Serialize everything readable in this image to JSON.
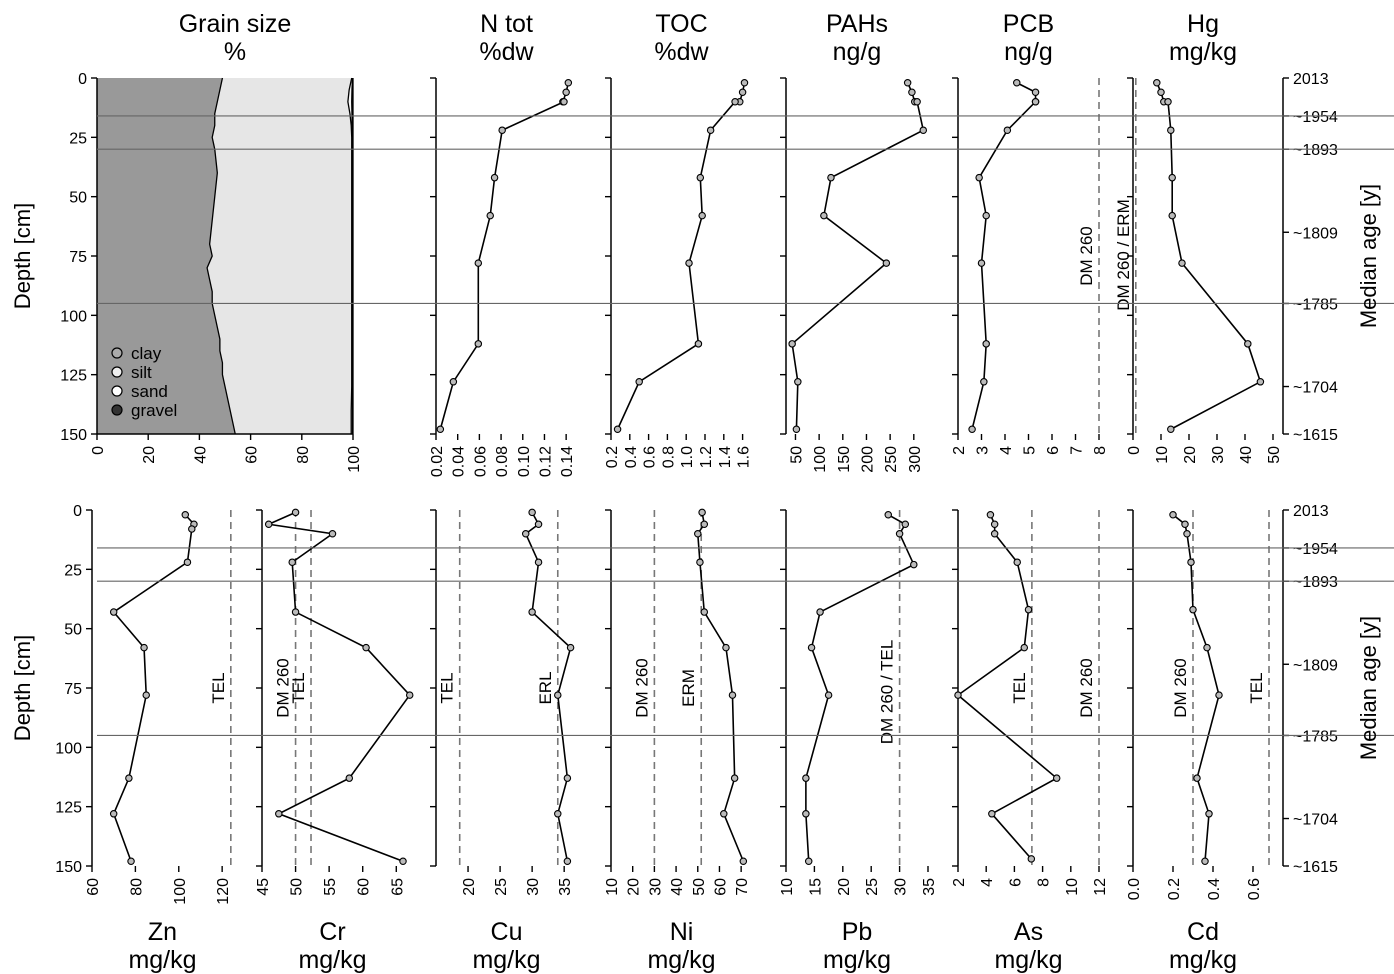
{
  "figure": {
    "ylabel": "Depth [cm]",
    "y2label": "Median age [y]"
  },
  "chart_data": [
    {
      "type": "area",
      "row": "top",
      "title_lines": [
        "Grain size",
        "%"
      ],
      "xlim": [
        0,
        100
      ],
      "xticks": [
        0,
        20,
        40,
        60,
        80,
        100
      ],
      "legend": [
        "clay",
        "silt",
        "sand",
        "gravel"
      ],
      "depth": [
        0,
        5,
        10,
        15,
        20,
        25,
        30,
        40,
        50,
        60,
        70,
        75,
        80,
        85,
        90,
        95,
        100,
        105,
        110,
        115,
        120,
        125,
        130,
        140,
        150
      ],
      "series": [
        {
          "name": "clay",
          "cumulative": [
            49,
            48,
            47,
            46,
            46,
            45,
            46,
            47,
            46,
            45,
            44,
            45,
            43,
            44,
            45,
            45,
            46,
            47,
            48,
            48,
            49,
            49,
            50,
            52,
            54
          ]
        },
        {
          "name": "silt",
          "cumulative": [
            99.5,
            98.5,
            98,
            98.8,
            99.3,
            99.5,
            99.5,
            99.5,
            99.5,
            99.5,
            99.5,
            99.5,
            99.5,
            99.5,
            99.5,
            99.5,
            99.5,
            99.5,
            99.5,
            99.5,
            99.5,
            99.5,
            99.5,
            99.3,
            99.3
          ]
        },
        {
          "name": "sand",
          "cumulative": [
            99.8,
            99.6,
            99.5,
            99.6,
            99.7,
            99.8,
            99.8,
            99.8,
            99.8,
            99.8,
            99.8,
            99.8,
            99.8,
            99.8,
            99.8,
            99.8,
            99.8,
            99.8,
            99.8,
            99.8,
            99.8,
            99.8,
            99.8,
            99.8,
            99.8
          ]
        },
        {
          "name": "gravel",
          "cumulative": [
            100,
            100,
            100,
            100,
            100,
            100,
            100,
            100,
            100,
            100,
            100,
            100,
            100,
            100,
            100,
            100,
            100,
            100,
            100,
            100,
            100,
            100,
            100,
            100,
            100
          ]
        }
      ]
    },
    {
      "type": "line",
      "row": "top",
      "title_lines": [
        "N tot",
        "%dw"
      ],
      "xlim": [
        0.02,
        0.15
      ],
      "xticks": [
        0.02,
        0.04,
        0.06,
        0.08,
        0.1,
        0.12,
        0.14
      ],
      "xtick_labels": [
        "0.02",
        "0.04",
        "0.06",
        "0.08",
        "0.10",
        "0.12",
        "0.14"
      ],
      "x": [
        0.142,
        0.14,
        0.137,
        0.138,
        0.081,
        0.074,
        0.07,
        0.059,
        0.059,
        0.036,
        0.024
      ],
      "y": [
        2,
        6,
        10,
        10,
        22,
        42,
        58,
        78,
        112,
        128,
        148
      ],
      "refs": []
    },
    {
      "type": "line",
      "row": "top",
      "title_lines": [
        "TOC",
        "%dw"
      ],
      "xlim": [
        0.2,
        1.7
      ],
      "xticks": [
        0.2,
        0.4,
        0.6,
        0.8,
        1.0,
        1.2,
        1.4,
        1.6
      ],
      "xtick_labels": [
        "0.2",
        "0.4",
        "0.6",
        "0.8",
        "1.0",
        "1.2",
        "1.4",
        "1.6"
      ],
      "x": [
        1.62,
        1.6,
        1.57,
        1.52,
        1.26,
        1.15,
        1.17,
        1.03,
        1.13,
        0.5,
        0.27
      ],
      "y": [
        2,
        6,
        10,
        10,
        22,
        42,
        58,
        78,
        112,
        128,
        148
      ],
      "refs": []
    },
    {
      "type": "line",
      "row": "top",
      "title_lines": [
        "PAHs",
        "ng/g"
      ],
      "xlim": [
        30,
        330
      ],
      "xticks": [
        50,
        100,
        150,
        200,
        250,
        300
      ],
      "xtick_labels": [
        "50",
        "100",
        "150",
        "200",
        "250",
        "300"
      ],
      "x": [
        287,
        296,
        302,
        307,
        320,
        125,
        110,
        242,
        43,
        55,
        52
      ],
      "y": [
        2,
        6,
        10,
        10,
        22,
        42,
        58,
        78,
        112,
        128,
        148
      ],
      "refs": []
    },
    {
      "type": "line",
      "row": "top",
      "title_lines": [
        "PCB",
        "ng/g"
      ],
      "xlim": [
        2,
        8
      ],
      "xticks": [
        2,
        3,
        4,
        5,
        6,
        7,
        8
      ],
      "xtick_labels": [
        "2",
        "3",
        "4",
        "5",
        "6",
        "7",
        "8"
      ],
      "x": [
        4.5,
        5.3,
        5.3,
        5.3,
        4.1,
        2.9,
        3.2,
        3.0,
        3.2,
        3.1,
        2.6
      ],
      "y": [
        2,
        6,
        10,
        10,
        22,
        42,
        58,
        78,
        112,
        128,
        148
      ],
      "refs": [
        {
          "value": 8,
          "label": "DM 260"
        }
      ]
    },
    {
      "type": "line",
      "row": "top",
      "title_lines": [
        "Hg",
        "mg/kg"
      ],
      "xlim": [
        0,
        50
      ],
      "xticks": [
        0,
        10,
        20,
        30,
        40,
        50
      ],
      "xtick_labels": [
        "0",
        "10",
        "20",
        "30",
        "40",
        "50"
      ],
      "x": [
        8.5,
        10,
        11,
        12.5,
        13.5,
        14,
        14,
        17.5,
        41,
        45.5,
        13.5
      ],
      "y": [
        2,
        6,
        10,
        10,
        22,
        42,
        58,
        78,
        112,
        128,
        148
      ],
      "refs": [
        {
          "value": 1,
          "label": "DM 260 / ERM"
        }
      ]
    },
    {
      "type": "line",
      "row": "bottom",
      "title_lines": [
        "Zn",
        "mg/kg"
      ],
      "xlim": [
        60,
        125
      ],
      "xticks": [
        60,
        80,
        100,
        120
      ],
      "xtick_labels": [
        "60",
        "80",
        "100",
        "120"
      ],
      "x": [
        103,
        107,
        106,
        104,
        70,
        84,
        85,
        77,
        70,
        78
      ],
      "y": [
        2,
        6,
        8,
        22,
        43,
        58,
        78,
        113,
        128,
        148
      ],
      "refs": [
        {
          "value": 124,
          "label": "TEL"
        }
      ]
    },
    {
      "type": "line",
      "row": "bottom",
      "title_lines": [
        "Cr",
        "mg/kg"
      ],
      "xlim": [
        45,
        66
      ],
      "xticks": [
        45,
        50,
        55,
        60,
        65
      ],
      "xtick_labels": [
        "45",
        "50",
        "55",
        "60",
        "65"
      ],
      "x": [
        50,
        46,
        55.5,
        49.5,
        50,
        60.5,
        67,
        58,
        47.5,
        66
      ],
      "y": [
        1,
        6,
        10,
        22,
        43,
        58,
        78,
        113,
        128,
        148
      ],
      "refs": [
        {
          "value": 50,
          "label": "DM 260"
        },
        {
          "value": 52.3,
          "label": "TEL"
        }
      ]
    },
    {
      "type": "line",
      "row": "bottom",
      "title_lines": [
        "Cu",
        "mg/kg"
      ],
      "xlim": [
        15,
        37
      ],
      "xticks": [
        20,
        25,
        30,
        35
      ],
      "xtick_labels": [
        "20",
        "25",
        "30",
        "35"
      ],
      "x": [
        30,
        31,
        29,
        31,
        30,
        36,
        34,
        35.5,
        34,
        35.5
      ],
      "y": [
        1,
        6,
        10,
        22,
        43,
        58,
        78,
        113,
        128,
        148
      ],
      "refs": [
        {
          "value": 18.7,
          "label": "TEL"
        },
        {
          "value": 34,
          "label": "ERL"
        }
      ]
    },
    {
      "type": "line",
      "row": "bottom",
      "title_lines": [
        "Ni",
        "mg/kg"
      ],
      "xlim": [
        10,
        75
      ],
      "xticks": [
        10,
        20,
        30,
        40,
        50,
        60,
        70
      ],
      "xtick_labels": [
        "10",
        "20",
        "30",
        "40",
        "50",
        "60",
        "70"
      ],
      "x": [
        52,
        53,
        50,
        51,
        53,
        63,
        66,
        67,
        62,
        71
      ],
      "y": [
        1,
        6,
        10,
        22,
        43,
        58,
        78,
        113,
        128,
        148
      ],
      "refs": [
        {
          "value": 30,
          "label": "DM 260"
        },
        {
          "value": 51.6,
          "label": "ERM"
        }
      ]
    },
    {
      "type": "line",
      "row": "bottom",
      "title_lines": [
        "Pb",
        "mg/kg"
      ],
      "xlim": [
        10,
        35
      ],
      "xticks": [
        10,
        15,
        20,
        25,
        30,
        35
      ],
      "xtick_labels": [
        "10",
        "15",
        "20",
        "25",
        "30",
        "35"
      ],
      "x": [
        28,
        31,
        30,
        32.5,
        16,
        14.5,
        17.5,
        13.5,
        13.5,
        14
      ],
      "y": [
        2,
        6,
        10,
        23,
        43,
        58,
        78,
        113,
        128,
        148
      ],
      "refs": [
        {
          "value": 30,
          "label": "DM 260 / TEL"
        }
      ]
    },
    {
      "type": "line",
      "row": "bottom",
      "title_lines": [
        "As",
        "mg/kg"
      ],
      "xlim": [
        2,
        12
      ],
      "xticks": [
        2,
        4,
        6,
        8,
        10,
        12
      ],
      "xtick_labels": [
        "2",
        "4",
        "6",
        "8",
        "10",
        "12"
      ],
      "x": [
        4.3,
        4.6,
        4.6,
        6.2,
        7.0,
        6.7,
        2.0,
        9.0,
        4.4,
        7.2
      ],
      "y": [
        2,
        6,
        10,
        22,
        42,
        58,
        78,
        113,
        128,
        147
      ],
      "refs": [
        {
          "value": 7.24,
          "label": "TEL"
        },
        {
          "value": 12,
          "label": "DM 260"
        }
      ]
    },
    {
      "type": "line",
      "row": "bottom",
      "title_lines": [
        "Cd",
        "mg/kg"
      ],
      "xlim": [
        0,
        0.7
      ],
      "xticks": [
        0,
        0.2,
        0.4,
        0.6
      ],
      "xtick_labels": [
        "0.0",
        "0.2",
        "0.4",
        "0.6"
      ],
      "x": [
        0.2,
        0.26,
        0.27,
        0.29,
        0.3,
        0.37,
        0.43,
        0.32,
        0.38,
        0.36
      ],
      "y": [
        2,
        6,
        10,
        22,
        42,
        58,
        78,
        113,
        128,
        148
      ],
      "refs": [
        {
          "value": 0.3,
          "label": "DM 260"
        },
        {
          "value": 0.68,
          "label": "TEL"
        }
      ]
    }
  ],
  "depth_axis": {
    "ylim": [
      0,
      150
    ],
    "yticks": [
      0,
      25,
      50,
      75,
      100,
      125,
      150
    ],
    "ytick_labels": [
      "0",
      "25",
      "50",
      "75",
      "100",
      "125",
      "150"
    ]
  },
  "age_axis": [
    {
      "depth": 0,
      "label": "2013"
    },
    {
      "depth": 16,
      "label": "~1954"
    },
    {
      "depth": 30,
      "label": "~1893"
    },
    {
      "depth": 65,
      "label": "~1809"
    },
    {
      "depth": 95,
      "label": "~1785"
    },
    {
      "depth": 130,
      "label": "~1704"
    },
    {
      "depth": 150,
      "label": "~1615"
    }
  ],
  "horizon_depths": [
    16,
    30,
    95
  ],
  "style": {
    "clay": "#999999",
    "silt": "#e6e6e6",
    "sand": "#f8f8f8",
    "gravel": "#333333",
    "line": "#000000",
    "ref": "#777777",
    "horizon": "#666666",
    "marker": "#bbbbbb"
  }
}
